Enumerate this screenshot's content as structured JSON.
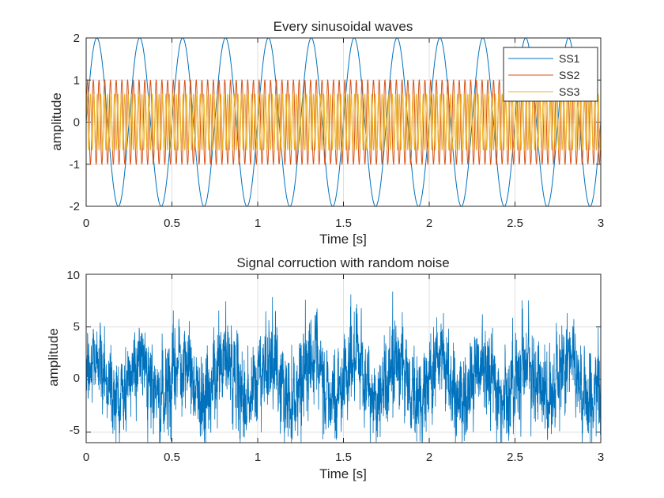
{
  "figure": {
    "background": "#ffffff",
    "axis_color": "#262626",
    "grid_color": "#dfdfdf"
  },
  "chart_data": [
    {
      "type": "line",
      "title": "Every sinusoidal waves",
      "xlabel": "Time [s]",
      "ylabel": "amplitude",
      "xlim": [
        0,
        3
      ],
      "ylim": [
        -2,
        2
      ],
      "x_ticks": [
        "0",
        "0.5",
        "1",
        "1.5",
        "2",
        "2.5",
        "3"
      ],
      "y_ticks": [
        "2",
        "1",
        "0",
        "-1",
        "-2"
      ],
      "grid": true,
      "legend": "top-right",
      "series": [
        {
          "name": "SS1",
          "color": "#0072BD",
          "amplitude": 2.0,
          "frequency_hz": 4,
          "sample_step": 0.001
        },
        {
          "name": "SS2",
          "color": "#D95319",
          "amplitude": 1.0,
          "frequency_hz": 30,
          "sample_step": 0.001
        },
        {
          "name": "SS3",
          "color": "#EDB120",
          "amplitude": 0.67,
          "frequency_hz": 50,
          "sample_step": 0.001
        }
      ]
    },
    {
      "type": "line",
      "title": "Signal corruction with random noise",
      "xlabel": "Time [s]",
      "ylabel": "amplitude",
      "xlim": [
        0,
        3
      ],
      "ylim": [
        -6,
        10
      ],
      "x_ticks": [
        "0",
        "0.5",
        "1",
        "1.5",
        "2",
        "2.5",
        "3"
      ],
      "y_ticks": [
        "10",
        "5",
        "0",
        "-5"
      ],
      "grid": true,
      "series": [
        {
          "name": "",
          "color": "#0072BD",
          "base": "SS1+SS2+SS3",
          "noise_std": 2.0,
          "sample_step": 0.001
        }
      ]
    }
  ]
}
